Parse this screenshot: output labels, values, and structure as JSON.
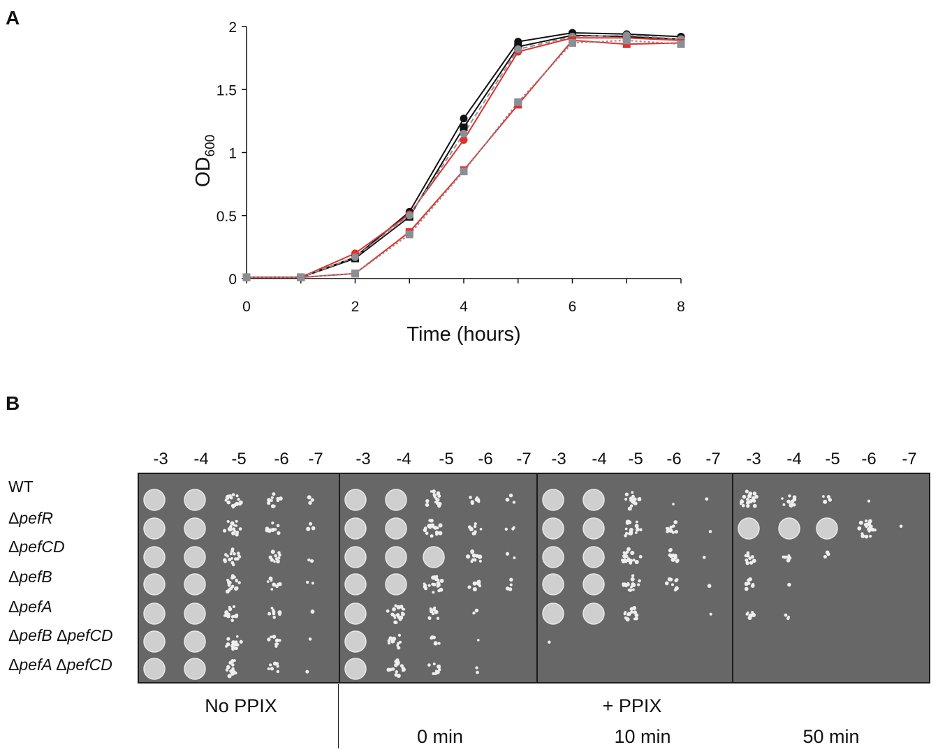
{
  "panel_a_label": "A",
  "panel_b_label": "B",
  "chart_data": {
    "type": "line",
    "title": "",
    "xlabel": "Time (hours)",
    "ylabel_main": "OD",
    "ylabel_sub": "600",
    "xlim": [
      0,
      8
    ],
    "ylim": [
      0,
      2
    ],
    "x_ticks": [
      0,
      2,
      4,
      6,
      8
    ],
    "y_ticks": [
      0,
      0.5,
      1,
      1.5,
      2
    ],
    "y_tick_labels": [
      "0",
      "0.5",
      "1",
      "1.5",
      "2"
    ],
    "legend": "none",
    "grid": false,
    "series": [
      {
        "x": [
          0,
          1,
          2,
          3,
          4,
          5,
          6,
          7,
          8
        ],
        "values": [
          0.01,
          0.01,
          0.17,
          0.53,
          1.27,
          1.88,
          1.95,
          1.94,
          1.92
        ],
        "color": "#111111",
        "marker": "circle",
        "dash": "solid"
      },
      {
        "x": [
          0,
          1,
          2,
          3,
          4,
          5,
          6,
          7,
          8
        ],
        "values": [
          0.01,
          0.01,
          0.16,
          0.49,
          1.2,
          1.84,
          1.93,
          1.92,
          1.9
        ],
        "color": "#111111",
        "marker": "square",
        "dash": "solid"
      },
      {
        "x": [
          0,
          1,
          2,
          3,
          4,
          5,
          6,
          7,
          8
        ],
        "values": [
          0.01,
          0.01,
          0.2,
          0.51,
          1.1,
          1.8,
          1.91,
          1.91,
          1.89
        ],
        "color": "#e0312c",
        "marker": "circle",
        "dash": "solid"
      },
      {
        "x": [
          0,
          1,
          2,
          3,
          4,
          5,
          6,
          7,
          8
        ],
        "values": [
          0.01,
          0.01,
          0.17,
          0.5,
          1.15,
          1.82,
          1.92,
          1.93,
          1.9
        ],
        "color": "#8a8f96",
        "marker": "circle",
        "dash": "dashed"
      },
      {
        "x": [
          0,
          1,
          2,
          3,
          4,
          5,
          6,
          7,
          8
        ],
        "values": [
          0.01,
          0.01,
          0.04,
          0.37,
          0.86,
          1.38,
          1.89,
          1.86,
          1.87
        ],
        "color": "#e0312c",
        "marker": "square",
        "dash": "solid"
      },
      {
        "x": [
          0,
          1,
          2,
          3,
          4,
          5,
          6,
          7,
          8
        ],
        "values": [
          0.01,
          0.01,
          0.04,
          0.35,
          0.85,
          1.4,
          1.87,
          1.89,
          1.86
        ],
        "color": "#8a8f96",
        "marker": "square",
        "dash": "dotted"
      }
    ]
  },
  "dilutions": [
    "-3",
    "-4",
    "-5",
    "-6",
    "-7"
  ],
  "strains": [
    {
      "prefix": "",
      "italic": "",
      "rest": "WT"
    },
    {
      "prefix": "Δ",
      "italic": "pefR",
      "rest": ""
    },
    {
      "prefix": "Δ",
      "italic": "pefCD",
      "rest": ""
    },
    {
      "prefix": "Δ",
      "italic": "pefB",
      "rest": ""
    },
    {
      "prefix": "Δ",
      "italic": "pefA",
      "rest": ""
    },
    {
      "prefix": "Δ",
      "italic": "pefB Δ",
      "italic2": "pefCD",
      "rest": ""
    },
    {
      "prefix": "Δ",
      "italic": "pefA Δ",
      "italic2": "pefCD",
      "rest": ""
    }
  ],
  "conditions": {
    "no_ppix": "No PPIX",
    "plus_ppix": "+ PPIX",
    "t0": "0 min",
    "t10": "10 min",
    "t50": "50 min"
  },
  "plates": [
    {
      "growth": [
        [
          1,
          1,
          0.75,
          0.5,
          0.12
        ],
        [
          1,
          1,
          0.75,
          0.45,
          0.12
        ],
        [
          1,
          1,
          0.75,
          0.45,
          0.1
        ],
        [
          1,
          1,
          0.75,
          0.4,
          0.08
        ],
        [
          1,
          1,
          0.7,
          0.4,
          0.05
        ],
        [
          1,
          1,
          0.7,
          0.35,
          0.05
        ],
        [
          1,
          1,
          0.7,
          0.35,
          0.05
        ]
      ]
    },
    {
      "growth": [
        [
          1,
          1,
          0.75,
          0.35,
          0.12
        ],
        [
          1,
          1,
          0.8,
          0.4,
          0.15
        ],
        [
          1,
          1,
          0.9,
          0.5,
          0.12
        ],
        [
          1,
          1,
          0.85,
          0.35,
          0.2
        ],
        [
          1,
          0.8,
          0.4,
          0.08,
          0
        ],
        [
          1,
          0.5,
          0.3,
          0.05,
          0
        ],
        [
          1,
          0.75,
          0.35,
          0.08,
          0
        ]
      ]
    },
    {
      "growth": [
        [
          1,
          1,
          0.8,
          0.05,
          0.05
        ],
        [
          1,
          1,
          0.85,
          0.45,
          0.05
        ],
        [
          1,
          1,
          0.85,
          0.55,
          0.05
        ],
        [
          1,
          1,
          0.75,
          0.4,
          0.05
        ],
        [
          1,
          1,
          0.6,
          0,
          0.05
        ],
        [
          0.05,
          0,
          0,
          0,
          0
        ],
        [
          0,
          0,
          0,
          0,
          0
        ]
      ]
    },
    {
      "growth": [
        [
          0.8,
          0.5,
          0.2,
          0.05,
          0
        ],
        [
          1,
          1,
          0.95,
          0.85,
          0.05
        ],
        [
          0.4,
          0.3,
          0.15,
          0,
          0
        ],
        [
          0.3,
          0.05,
          0,
          0,
          0
        ],
        [
          0.3,
          0.15,
          0,
          0,
          0
        ],
        [
          0,
          0,
          0,
          0,
          0
        ],
        [
          0,
          0,
          0,
          0,
          0
        ]
      ]
    }
  ]
}
